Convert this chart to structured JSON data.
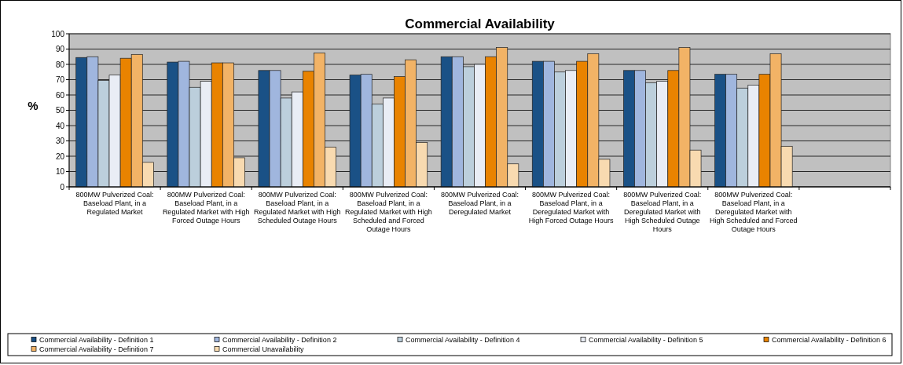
{
  "chart_data": {
    "type": "bar",
    "title": "Commercial Availability",
    "ylabel": "%",
    "categories": [
      "800MW Pulverized Coal: Baseload Plant, in a Regulated Market",
      "800MW Pulverized Coal: Baseload Plant, in a Regulated Market with High Forced Outage Hours",
      "800MW Pulverized Coal: Baseload Plant, in a Regulated Market with High Scheduled Outage Hours",
      "800MW Pulverized Coal: Baseload Plant, in a Regulated Market with High Scheduled and Forced Outage Hours",
      "800MW Pulverized Coal: Baseload Plant, in a Deregulated Market",
      "800MW Pulverized Coal: Baseload Plant, in a Deregulated Market with High Forced Outage Hours",
      "800MW Pulverized Coal: Baseload Plant, in a Deregulated Market with High Scheduled Outage Hours",
      "800MW Pulverized Coal: Baseload Plant, in a Deregulated Market with High Scheduled and Forced Outage Hours",
      null
    ],
    "series": [
      {
        "name": "Commercial Availability - Definition 1",
        "color": "#1a5186",
        "values": [
          84.5,
          81.5,
          76,
          73,
          85,
          82,
          76,
          73.5,
          null
        ]
      },
      {
        "name": "Commercial Availability - Definition 2",
        "color": "#a0b6de",
        "values": [
          85,
          82,
          76,
          73.5,
          85,
          82,
          76,
          73.5,
          null
        ]
      },
      {
        "name": "Commercial Availability - Definition 4",
        "color": "#bccfdc",
        "values": [
          69.5,
          65,
          58,
          54,
          78.5,
          75,
          68,
          64.5,
          null
        ]
      },
      {
        "name": "Commercial Availability - Definition 5",
        "color": "#e9edf5",
        "values": [
          73,
          69,
          62,
          58,
          80,
          76,
          69,
          66.5,
          null
        ]
      },
      {
        "name": "Commercial Availability - Definition 6",
        "color": "#e98300",
        "values": [
          84,
          81,
          75.5,
          72,
          85,
          82,
          76,
          73.5,
          null
        ]
      },
      {
        "name": "Commercial Availability - Definition 7",
        "color": "#f2b366",
        "values": [
          86.5,
          81,
          87.5,
          83,
          91,
          87,
          91,
          87,
          null
        ]
      },
      {
        "name": "Commercial Unavailability",
        "color": "#f8dab0",
        "values": [
          16,
          19,
          26,
          29,
          15,
          18,
          24,
          26.5,
          null
        ]
      }
    ],
    "ylim": [
      0,
      100
    ],
    "yticks": [
      0,
      10,
      20,
      30,
      40,
      50,
      60,
      70,
      80,
      90,
      100
    ],
    "grid": "y",
    "legend": "bottom"
  }
}
